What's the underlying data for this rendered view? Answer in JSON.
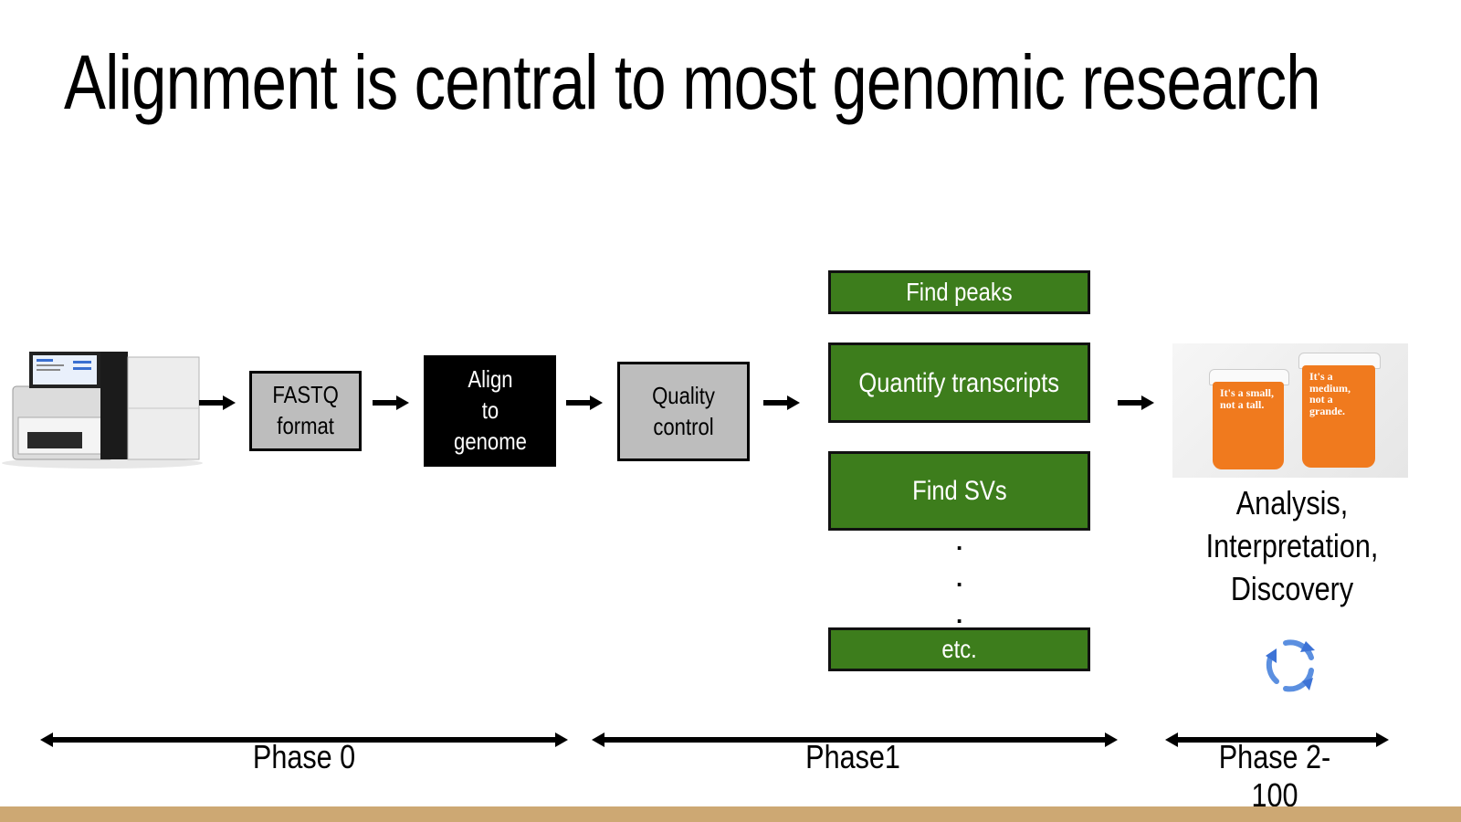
{
  "title": "Alignment is central to most genomic research",
  "pipeline": {
    "fastq": "FASTQ\nformat",
    "align": "Align\nto\ngenome",
    "qc": "Quality control"
  },
  "tasks": {
    "find_peaks": "Find peaks",
    "quantify": "Quantify transcripts",
    "find_svs": "Find SVs",
    "etc": "etc."
  },
  "result": {
    "line1": "Analysis,",
    "line2": "Interpretation,",
    "line3": "Discovery"
  },
  "cups": {
    "left": "It's a small, not a tall.",
    "right": "It's a medium, not a grande."
  },
  "phases": {
    "p0": "Phase 0",
    "p1": "Phase1",
    "p2": "Phase 2-100"
  },
  "colors": {
    "green": "#3d7d1c",
    "gray": "#bdbdbd",
    "footer": "#cda873",
    "cycle": "#5b8fe0"
  }
}
